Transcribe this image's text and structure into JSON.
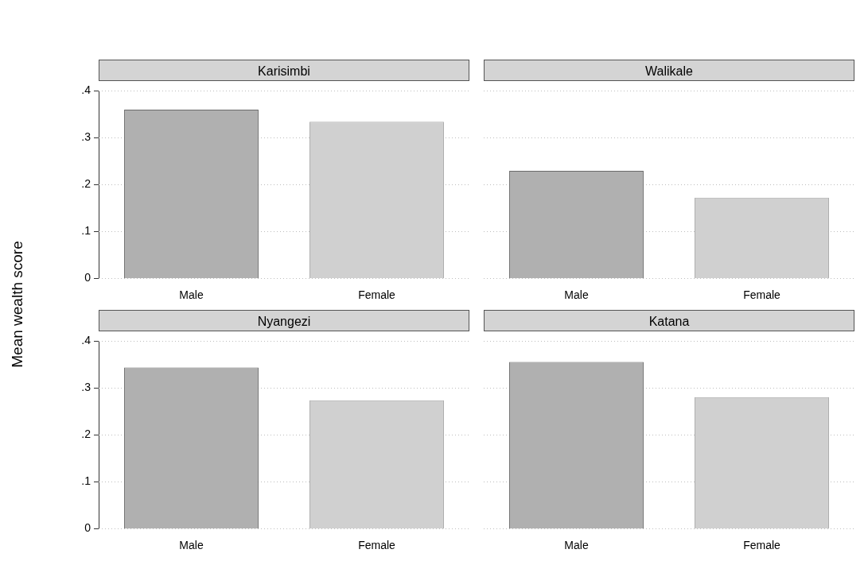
{
  "chart_data": [
    {
      "type": "bar",
      "title": "Karisimbi",
      "ylabel": "Mean wealth score",
      "categories": [
        "Male",
        "Female"
      ],
      "values": [
        0.36,
        0.334
      ],
      "colors": [
        "#b0b0b0",
        "#d0d0d0"
      ],
      "ylim": [
        0,
        0.4
      ],
      "yticks": [
        {
          "value": 0,
          "label": "0"
        },
        {
          "value": 0.1,
          "label": ".1"
        },
        {
          "value": 0.2,
          "label": ".2"
        },
        {
          "value": 0.3,
          "label": ".3"
        },
        {
          "value": 0.4,
          "label": ".4"
        }
      ],
      "grid": "y"
    },
    {
      "type": "bar",
      "title": "Walikale",
      "categories": [
        "Male",
        "Female"
      ],
      "values": [
        0.229,
        0.172
      ],
      "colors": [
        "#b0b0b0",
        "#d0d0d0"
      ],
      "ylim": [
        0,
        0.4
      ],
      "yticks": [
        {
          "value": 0,
          "label": null
        },
        {
          "value": 0.1,
          "label": null
        },
        {
          "value": 0.2,
          "label": null
        },
        {
          "value": 0.3,
          "label": null
        },
        {
          "value": 0.4,
          "label": null
        }
      ],
      "grid": "y",
      "tick_labels": "x"
    },
    {
      "type": "bar",
      "title": "Nyangezi",
      "categories": [
        "Male",
        "Female"
      ],
      "values": [
        0.344,
        0.274
      ],
      "colors": [
        "#b0b0b0",
        "#d0d0d0"
      ],
      "ylim": [
        0,
        0.4
      ],
      "yticks": [
        {
          "value": 0,
          "label": "0"
        },
        {
          "value": 0.1,
          "label": ".1"
        },
        {
          "value": 0.2,
          "label": ".2"
        },
        {
          "value": 0.3,
          "label": ".3"
        },
        {
          "value": 0.4,
          "label": ".4"
        }
      ],
      "grid": "y"
    },
    {
      "type": "bar",
      "title": "Katana",
      "categories": [
        "Male",
        "Female"
      ],
      "values": [
        0.355,
        0.28
      ],
      "colors": [
        "#b0b0b0",
        "#d0d0d0"
      ],
      "ylim": [
        0,
        0.4
      ],
      "yticks": [
        {
          "value": 0,
          "label": null
        },
        {
          "value": 0.1,
          "label": null
        },
        {
          "value": 0.2,
          "label": null
        },
        {
          "value": 0.3,
          "label": null
        },
        {
          "value": 0.4,
          "label": null
        }
      ],
      "grid": "y",
      "tick_labels": "x"
    }
  ]
}
